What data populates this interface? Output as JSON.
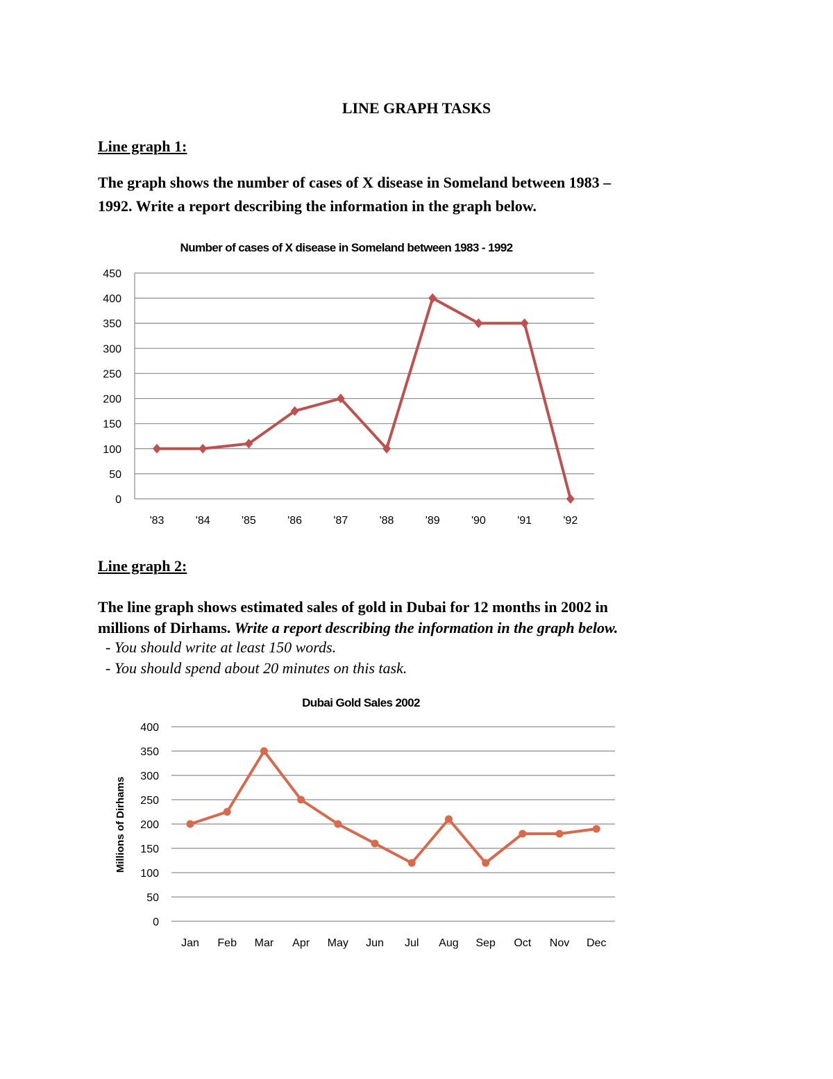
{
  "document": {
    "title": "LINE GRAPH TASKS",
    "section1": {
      "heading": "Line graph 1:",
      "prompt_line1": "The graph shows the number of cases of X disease in Someland between 1983 –",
      "prompt_line2": "1992. Write a report describing the information in the graph below."
    },
    "section2": {
      "heading": "Line graph 2:",
      "prompt_line1": "The line graph shows estimated sales of gold in Dubai for 12 months in 2002 in",
      "prompt_line2_bold": "millions of Dirhams. ",
      "prompt_line2_italic": "Write a report describing the information in the graph below.",
      "instructions": [
        "- You should write at least 150 words.",
        "- You should spend about 20 minutes on this task."
      ]
    }
  },
  "chart_data": [
    {
      "type": "line",
      "title": "Number of cases of X disease in Someland between 1983  - 1992",
      "xlabel": "",
      "ylabel": "",
      "categories": [
        "'83",
        "'84",
        "'85",
        "'86",
        "'87",
        "'88",
        "'89",
        "'90",
        "'91",
        "'92"
      ],
      "values": [
        100,
        100,
        110,
        175,
        200,
        100,
        400,
        350,
        350,
        0
      ],
      "ylim": [
        0,
        450
      ],
      "yticks": [
        0,
        50,
        100,
        150,
        200,
        250,
        300,
        350,
        400,
        450
      ],
      "grid": true,
      "marker": "diamond",
      "color": "#C0504D"
    },
    {
      "type": "line",
      "title": "Dubai Gold Sales 2002",
      "xlabel": "",
      "ylabel": "Millions of Dirhams",
      "categories": [
        "Jan",
        "Feb",
        "Mar",
        "Apr",
        "May",
        "Jun",
        "Jul",
        "Aug",
        "Sep",
        "Oct",
        "Nov",
        "Dec"
      ],
      "values": [
        200,
        225,
        350,
        250,
        200,
        160,
        120,
        210,
        120,
        180,
        180,
        190
      ],
      "ylim": [
        0,
        400
      ],
      "yticks": [
        0,
        50,
        100,
        150,
        200,
        250,
        300,
        350,
        400
      ],
      "grid": true,
      "marker": "circle",
      "color": "#D9694A"
    }
  ]
}
